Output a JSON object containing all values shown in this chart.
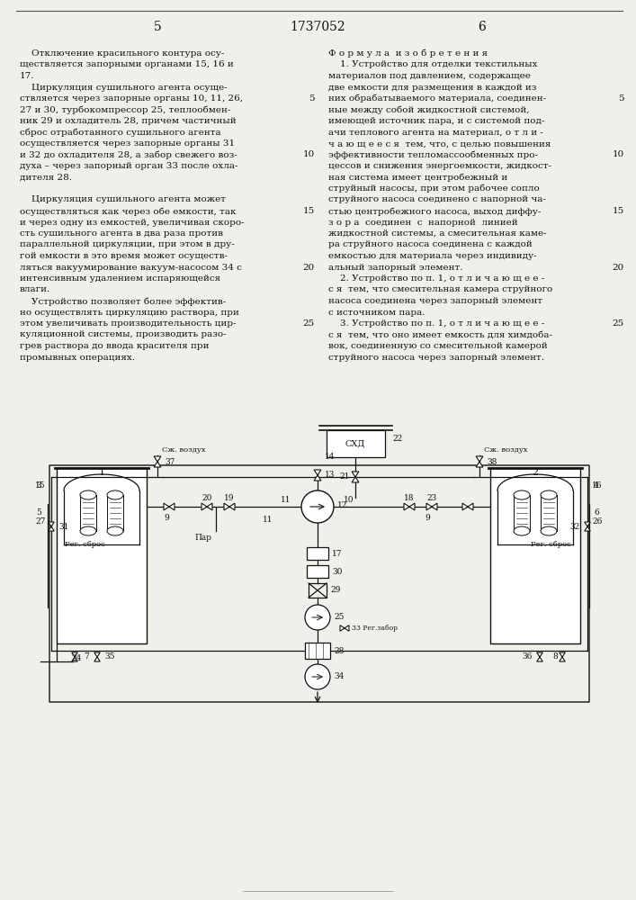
{
  "page_number_left": "5",
  "patent_number": "1737052",
  "page_number_right": "6",
  "left_col_lines": [
    "    Отключение красильного контура осу-",
    "ществляется запорными органами 15, 16 и",
    "17.",
    "    Циркуляция сушильного агента осуще-",
    "ствляется через запорные органы 10, 11, 26,",
    "27 и 30, турбокомпрессор 25, теплообмен-",
    "ник 29 и охладитель 28, причем частичный",
    "сброс отработанного сушильного агента",
    "осуществляется через запорные органы 31",
    "и 32 до охладителя 28, а забор свежего воз-",
    "духа – через запорный орган 33 после охла-",
    "дителя 28.",
    "",
    "    Циркуляция сушильного агента может",
    "осуществляться как через обе емкости, так",
    "и через одну из емкостей, увеличивая скоро-",
    "сть сушильного агента в два раза против",
    "параллельной циркуляции, при этом в дру-",
    "гой емкости в это время может осуществ-",
    "ляться вакуумирование вакуум-насосом 34 с",
    "интенсивным удалением испаряющейся",
    "влаги.",
    "    Устройство позволяет более эффектив-",
    "но осуществлять циркуляцию раствора, при",
    "этом увеличивать производительность цир-",
    "куляционной системы, производить разо-",
    "грев раствора до ввода красителя при",
    "промывных операциях."
  ],
  "right_col_lines": [
    "Ф о р м у л а  и з о б р е т е н и я",
    "    1. Устройство для отделки текстильных",
    "материалов под давлением, содержащее",
    "две емкости для размещения в каждой из",
    "них обрабатываемого материала, соединен-",
    "ные между собой жидкостной системой,",
    "имеющей источник пара, и с системой под-",
    "ачи теплового агента на материал, о т л и -",
    "ч а ю щ е е с я  тем, что, с целью повышения",
    "эффективности тепломассообменных про-",
    "цессов и снижения энергоемкости, жидкост-",
    "ная система имеет центробежный и",
    "струйный насосы, при этом рабочее сопло",
    "струйного насоса соединено с напорной ча-",
    "стью центробежного насоса, выход диффу-",
    "з о р а  соединен  с  напорной  линией",
    "жидкостной системы, а смесительная каме-",
    "ра струйного насоса соединена с каждой",
    "емкостью для материала через индивиду-",
    "альный запорный элемент.",
    "    2. Устройство по п. 1, о т л и ч а ю щ е е -",
    "с я  тем, что смесительная камера струйного",
    "насоса соединена через запорный элемент",
    "с источником пара.",
    "    3. Устройство по п. 1, о т л и ч а ю щ е е -",
    "с я  тем, что оно имеет емкость для химдоба-",
    "вок, соединенную со смесительной камерой",
    "струйного насоса через запорный элемент."
  ],
  "line_num_rows_left": [
    4,
    9,
    14,
    19,
    24
  ],
  "line_num_vals": [
    5,
    10,
    15,
    20,
    25
  ],
  "bg": "#f0f0eb",
  "fg": "#111111"
}
